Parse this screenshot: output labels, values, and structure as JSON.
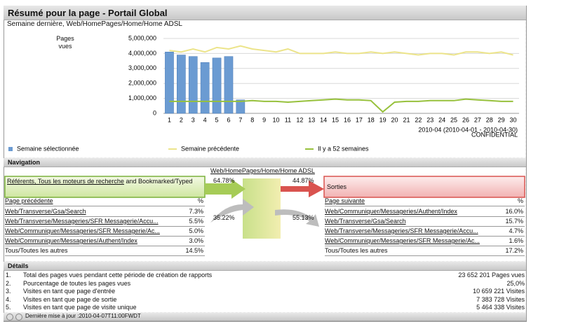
{
  "header": {
    "title": "Résumé pour la page - Portail Global",
    "subtitle": "Semaine dernière, Web/HomePages/Home/Home ADSL"
  },
  "chart_data": {
    "type": "bar",
    "y_label": "Pages vues",
    "categories": [
      "1",
      "2",
      "3",
      "4",
      "5",
      "6",
      "7",
      "8",
      "9",
      "10",
      "11",
      "12",
      "13",
      "14",
      "15",
      "16",
      "17",
      "18",
      "19",
      "20",
      "21",
      "22",
      "23",
      "24",
      "25",
      "26",
      "27",
      "28",
      "29",
      "30"
    ],
    "series": [
      {
        "name": "Semaine sélectionnée",
        "type": "bar",
        "color": "#6b9bd2",
        "values": [
          4100000,
          3900000,
          3800000,
          3400000,
          3700000,
          3800000,
          900000,
          null,
          null,
          null,
          null,
          null,
          null,
          null,
          null,
          null,
          null,
          null,
          null,
          null,
          null,
          null,
          null,
          null,
          null,
          null,
          null,
          null,
          null,
          null
        ]
      },
      {
        "name": "Semaine précédente",
        "type": "line",
        "color": "#ece48a",
        "values": [
          4200000,
          4100000,
          4300000,
          4100000,
          4400000,
          4300000,
          4500000,
          4300000,
          4200000,
          4100000,
          4300000,
          4000000,
          4000000,
          4000000,
          4100000,
          4000000,
          4000000,
          4100000,
          4000000,
          4100000,
          4000000,
          3900000,
          4000000,
          4000000,
          3900000,
          4100000,
          4100000,
          4000000,
          4100000,
          3900000
        ]
      },
      {
        "name": "Il y a 52 semaines",
        "type": "line",
        "color": "#97c13c",
        "values": [
          800000,
          800000,
          800000,
          800000,
          800000,
          800000,
          800000,
          850000,
          800000,
          800000,
          750000,
          800000,
          850000,
          900000,
          950000,
          900000,
          900000,
          850000,
          100000,
          750000,
          800000,
          800000,
          850000,
          850000,
          850000,
          950000,
          900000,
          850000,
          800000,
          800000
        ]
      }
    ],
    "ylim": [
      0,
      5000000
    ],
    "yticks": [
      0,
      {
        "value": 1000000,
        "label": "1,000,000"
      },
      {
        "value": 2000000,
        "label": "2,000,000"
      },
      {
        "value": 3000000,
        "label": "3,000,000"
      },
      {
        "value": 4000000,
        "label": "4,000,000"
      },
      {
        "value": 5000000,
        "label": "5,000,000"
      }
    ],
    "grid": true,
    "legend": "bottom",
    "annotations": [
      "2010-04 (2010-04-01 - 2010-04-30)",
      "CONFIDENTIAL"
    ]
  },
  "navigation": {
    "title": "Navigation",
    "page": "Web/HomePages/Home/Home ADSL",
    "referrers_link": "Référents, Tous les moteurs de recherche",
    "referrers_rest": "and Bookmarked/Typed",
    "exits": "Sorties",
    "flows": [
      "64.78%",
      "44.87%",
      "35.22%",
      "55.13%"
    ],
    "previous": {
      "header": "Page précédente",
      "pct_header": "%",
      "rows": [
        [
          "Web/Transverse/Gsa/Search",
          "7.3%"
        ],
        [
          "Web/Transverse/Messageries/SFR Messagerie/Accu...",
          "5.5%"
        ],
        [
          "Web/Communiquer/Messageries/SFR Messagerie/Ac...",
          "5.0%"
        ],
        [
          "Web/Communiquer/Messageries/Authent/Index",
          "3.0%"
        ],
        [
          "Tous/Toutes les autres",
          "14.5%"
        ]
      ]
    },
    "next": {
      "header": "Page suivante",
      "pct_header": "%",
      "rows": [
        [
          "Web/Communiquer/Messageries/Authent/Index",
          "16.0%"
        ],
        [
          "Web/Transverse/Gsa/Search",
          "15.7%"
        ],
        [
          "Web/Transverse/Messageries/SFR Messagerie/Accu...",
          "4.7%"
        ],
        [
          "Web/Communiquer/Messageries/SFR Messagerie/Ac...",
          "1.6%"
        ],
        [
          "Tous/Toutes les autres",
          "17.2%"
        ]
      ]
    }
  },
  "details": {
    "title": "Détails",
    "rows": [
      [
        "1.",
        "Total des pages vues pendant cette période de création de rapports",
        "23 652 201 Pages vues"
      ],
      [
        "2.",
        "Pourcentage de toutes les pages vues",
        "25,0%"
      ],
      [
        "3.",
        "Visites en tant que page d'entrée",
        "10 659 221 Visites"
      ],
      [
        "4.",
        "Visites en tant que page de sortie",
        "7 383 728 Visites"
      ],
      [
        "5.",
        "Visites en tant que page de visite unique",
        "5 464 338 Visites"
      ]
    ]
  },
  "footer": "Dernière mise à jour :2010-04-07T11:00FWDT"
}
